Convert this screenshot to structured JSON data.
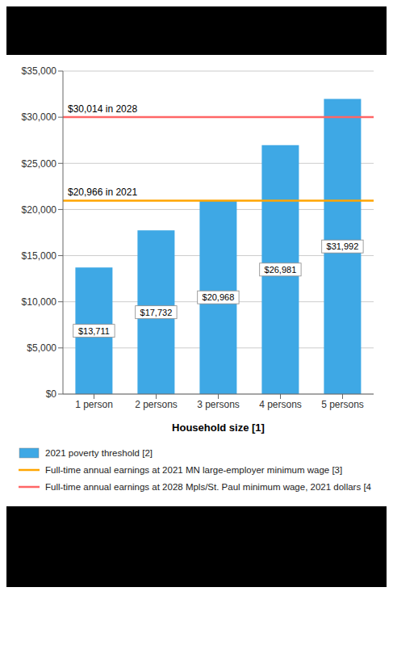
{
  "chart_data": {
    "type": "bar",
    "categories": [
      "1 person",
      "2 persons",
      "3 persons",
      "4 persons",
      "5 persons"
    ],
    "series": [
      {
        "name": "2021 poverty threshold [2]",
        "color": "#3EA8E5",
        "values": [
          13711,
          17732,
          20968,
          26981,
          31992
        ],
        "value_labels": [
          "$13,711",
          "$17,732",
          "$20,968",
          "$26,981",
          "$31,992"
        ]
      }
    ],
    "reference_lines": [
      {
        "name": "Full-time annual earnings at 2021 MN large-employer minimum wage [3]",
        "label": "$20,966 in 2021",
        "value": 20966,
        "color": "#FFA500"
      },
      {
        "name": "Full-time annual earnings at 2028 Mpls/St. Paul minimum wage, 2021 dollars [4",
        "label": "$30,014 in 2028",
        "value": 30014,
        "color": "#FF6666"
      }
    ],
    "xlabel": "Household size [1]",
    "ylim": [
      0,
      35000
    ],
    "yticks": [
      {
        "value": 0,
        "label": "$0"
      },
      {
        "value": 5000,
        "label": "$5,000"
      },
      {
        "value": 10000,
        "label": "$10,000"
      },
      {
        "value": 15000,
        "label": "$15,000"
      },
      {
        "value": 20000,
        "label": "$20,000"
      },
      {
        "value": 25000,
        "label": "$25,000"
      },
      {
        "value": 30000,
        "label": "$30,000"
      },
      {
        "value": 35000,
        "label": "$35,000"
      }
    ],
    "grid": true,
    "legend": "bottom",
    "data_labels": true
  }
}
